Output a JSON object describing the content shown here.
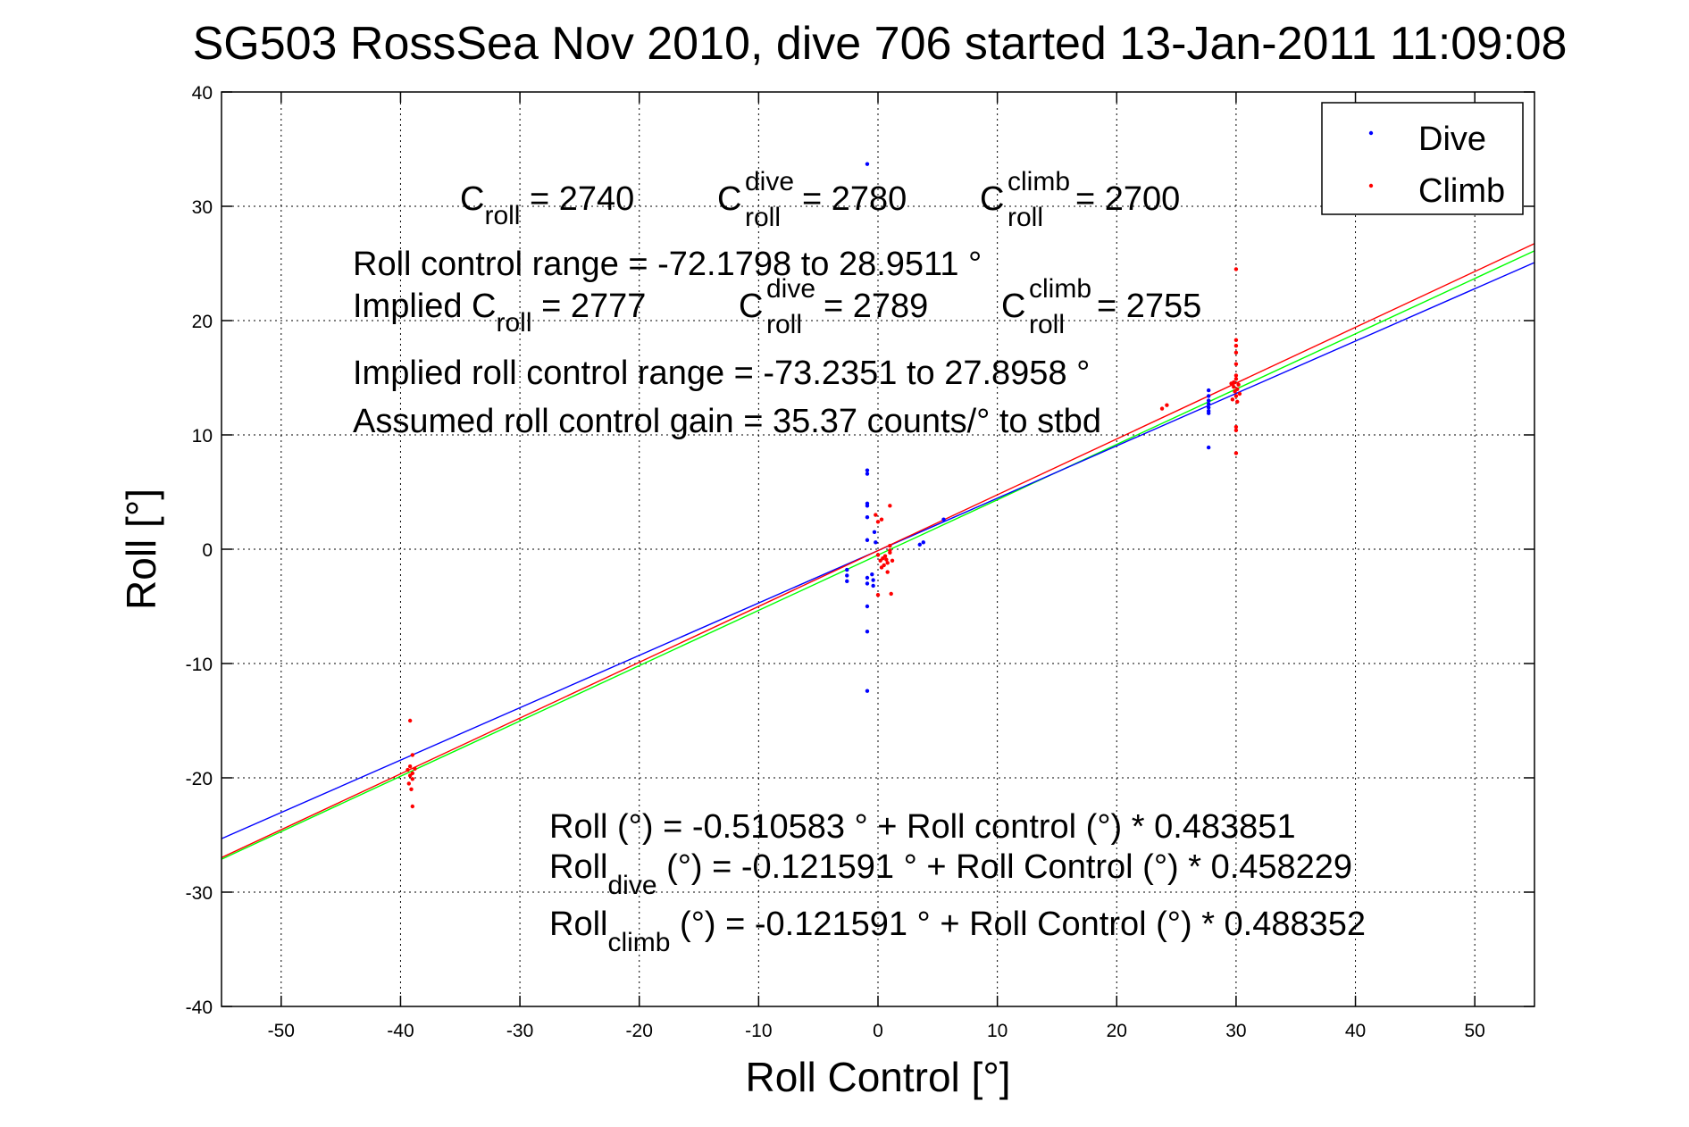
{
  "chart_data": {
    "type": "scatter",
    "title": "SG503 RossSea Nov 2010, dive 706 started 13-Jan-2011 11:09:08",
    "xlabel": "Roll Control [°]",
    "ylabel": "Roll [°]",
    "xlim": [
      -55,
      55
    ],
    "ylim": [
      -40,
      40
    ],
    "xticks": [
      -50,
      -40,
      -30,
      -20,
      -10,
      0,
      10,
      20,
      30,
      40,
      50
    ],
    "yticks": [
      -40,
      -30,
      -20,
      -10,
      0,
      10,
      20,
      30,
      40
    ],
    "xtick_labels": [
      "-50",
      "-40",
      "-30",
      "-20",
      "-10",
      "0",
      "10",
      "20",
      "30",
      "40",
      "50"
    ],
    "ytick_labels": [
      "-40",
      "-30",
      "-20",
      "-10",
      "0",
      "10",
      "20",
      "30",
      "40"
    ],
    "grid": true,
    "legend_position": "top-right",
    "series": [
      {
        "name": "Dive",
        "color": "#0000ff",
        "points": [
          [
            -0.9,
            33.7
          ],
          [
            -0.9,
            6.9
          ],
          [
            -0.9,
            6.6
          ],
          [
            -0.9,
            4.0
          ],
          [
            -0.9,
            3.8
          ],
          [
            -0.9,
            2.8
          ],
          [
            -0.9,
            0.8
          ],
          [
            -0.9,
            -2.5
          ],
          [
            -0.9,
            -3.0
          ],
          [
            -0.9,
            -5.0
          ],
          [
            -0.9,
            -7.2
          ],
          [
            -0.9,
            -12.4
          ],
          [
            -0.4,
            -2.7
          ],
          [
            -0.4,
            -3.2
          ],
          [
            -0.5,
            -2.2
          ],
          [
            -0.3,
            1.5
          ],
          [
            -0.2,
            0.6
          ],
          [
            -2.6,
            -1.8
          ],
          [
            -2.6,
            -2.3
          ],
          [
            -2.6,
            -2.8
          ],
          [
            5.5,
            2.6
          ],
          [
            3.8,
            0.6
          ],
          [
            3.5,
            0.4
          ],
          [
            27.7,
            13.9
          ],
          [
            27.7,
            13.4
          ],
          [
            27.7,
            13.0
          ],
          [
            27.7,
            12.7
          ],
          [
            27.7,
            12.4
          ],
          [
            27.7,
            12.1
          ],
          [
            27.7,
            11.9
          ],
          [
            27.7,
            8.9
          ]
        ]
      },
      {
        "name": "Climb",
        "color": "#ff0000",
        "points": [
          [
            -39.2,
            -15.0
          ],
          [
            -39.0,
            -18.0
          ],
          [
            -39.2,
            -19.0
          ],
          [
            -39.4,
            -19.3
          ],
          [
            -39.0,
            -19.6
          ],
          [
            -39.2,
            -19.8
          ],
          [
            -39.0,
            -20.1
          ],
          [
            -39.3,
            -20.5
          ],
          [
            -39.1,
            -21.0
          ],
          [
            -39.0,
            -22.5
          ],
          [
            -38.8,
            -19.2
          ],
          [
            -0.2,
            3.0
          ],
          [
            0.0,
            2.4
          ],
          [
            0.3,
            2.6
          ],
          [
            1.0,
            3.8
          ],
          [
            0.2,
            -1.0
          ],
          [
            0.4,
            -0.8
          ],
          [
            0.6,
            -0.6
          ],
          [
            0.8,
            -1.2
          ],
          [
            1.0,
            -0.3
          ],
          [
            1.0,
            0.3
          ],
          [
            0.5,
            -1.4
          ],
          [
            0.0,
            -0.5
          ],
          [
            0.3,
            -1.6
          ],
          [
            0.8,
            -2.0
          ],
          [
            1.2,
            -1.0
          ],
          [
            1.1,
            -3.9
          ],
          [
            0.0,
            -4.0
          ],
          [
            1.0,
            -0.1
          ],
          [
            0.7,
            -0.9
          ],
          [
            23.8,
            12.3
          ],
          [
            24.2,
            12.6
          ],
          [
            30.0,
            24.5
          ],
          [
            30.0,
            18.3
          ],
          [
            30.0,
            17.8
          ],
          [
            30.0,
            17.2
          ],
          [
            30.0,
            16.2
          ],
          [
            30.0,
            15.2
          ],
          [
            30.0,
            14.9
          ],
          [
            29.8,
            14.6
          ],
          [
            30.2,
            14.4
          ],
          [
            29.8,
            14.2
          ],
          [
            30.1,
            14.0
          ],
          [
            29.9,
            13.8
          ],
          [
            30.0,
            13.4
          ],
          [
            29.7,
            13.1
          ],
          [
            30.1,
            12.9
          ],
          [
            30.0,
            10.7
          ],
          [
            30.0,
            10.4
          ],
          [
            30.0,
            8.4
          ],
          [
            29.6,
            14.5
          ],
          [
            30.3,
            13.6
          ]
        ]
      }
    ],
    "fit_lines": [
      {
        "name": "all",
        "color": "#00ff00",
        "intercept": -0.510583,
        "slope": 0.483851
      },
      {
        "name": "dive",
        "color": "#0000ff",
        "intercept": -0.121591,
        "slope": 0.458229
      },
      {
        "name": "climb",
        "color": "#ff0000",
        "intercept": -0.121591,
        "slope": 0.488352
      }
    ],
    "annotations": {
      "c_roll": {
        "base": "C",
        "sub": "roll",
        "value": " = 2740"
      },
      "c_roll_dive": {
        "base": "C",
        "sup": "dive",
        "sub": "roll",
        "value": " = 2780"
      },
      "c_roll_climb": {
        "base": "C",
        "sup": "climb",
        "sub": "roll",
        "value": " = 2700"
      },
      "roll_control_range": "Roll control range = -72.1798 to 28.9511 °",
      "implied_prefix": "Implied C",
      "implied_sub": "roll",
      "implied_value": " = 2777",
      "implied_dive": {
        "base": "C",
        "sup": "dive",
        "sub": "roll",
        "value": " = 2789"
      },
      "implied_climb": {
        "base": "C",
        "sup": "climb",
        "sub": "roll",
        "value": " = 2755"
      },
      "implied_range": "Implied roll control range = -73.2351 to 27.8958 °",
      "assumed_gain": "Assumed roll control gain = 35.37 counts/° to stbd",
      "fit_all": "Roll (°) = -0.510583 ° + Roll control (°) * 0.483851",
      "fit_dive_base": "Roll",
      "fit_dive_sub": "dive",
      "fit_dive_rest": " (°) = -0.121591 ° + Roll Control (°) * 0.458229",
      "fit_climb_base": "Roll",
      "fit_climb_sub": "climb",
      "fit_climb_rest": " (°) = -0.121591 ° + Roll Control (°) * 0.488352"
    }
  }
}
